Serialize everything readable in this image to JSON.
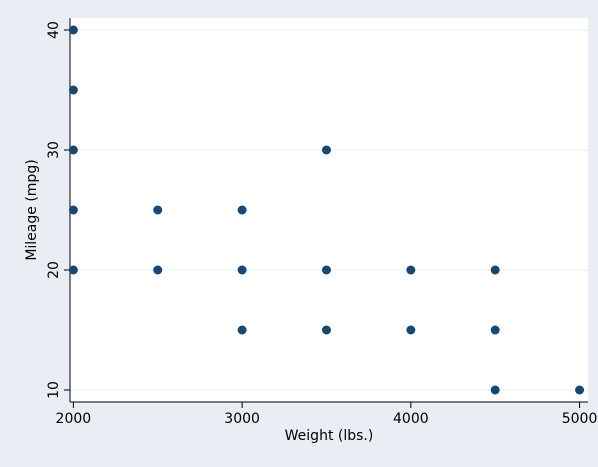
{
  "chart_data": {
    "type": "scatter",
    "xlabel": "Weight (lbs.)",
    "ylabel": "Mileage (mpg)",
    "xlim": [
      1980,
      5050
    ],
    "ylim": [
      9,
      41
    ],
    "x_ticks": [
      2000,
      3000,
      4000,
      5000
    ],
    "y_ticks": [
      10,
      20,
      30,
      40
    ],
    "grid": "horizontal",
    "legend": "none",
    "marker_color": "#1a476f",
    "background_color": "#e8eef3",
    "plot_background": "#ffffff",
    "points": [
      {
        "x": 2000,
        "y": 40
      },
      {
        "x": 2000,
        "y": 35
      },
      {
        "x": 2000,
        "y": 30
      },
      {
        "x": 2000,
        "y": 25
      },
      {
        "x": 2000,
        "y": 20
      },
      {
        "x": 2500,
        "y": 25
      },
      {
        "x": 2500,
        "y": 20
      },
      {
        "x": 3000,
        "y": 25
      },
      {
        "x": 3000,
        "y": 20
      },
      {
        "x": 3000,
        "y": 15
      },
      {
        "x": 3500,
        "y": 30
      },
      {
        "x": 3500,
        "y": 20
      },
      {
        "x": 3500,
        "y": 15
      },
      {
        "x": 4000,
        "y": 20
      },
      {
        "x": 4000,
        "y": 15
      },
      {
        "x": 4500,
        "y": 20
      },
      {
        "x": 4500,
        "y": 15
      },
      {
        "x": 4500,
        "y": 10
      },
      {
        "x": 5000,
        "y": 10
      }
    ]
  }
}
